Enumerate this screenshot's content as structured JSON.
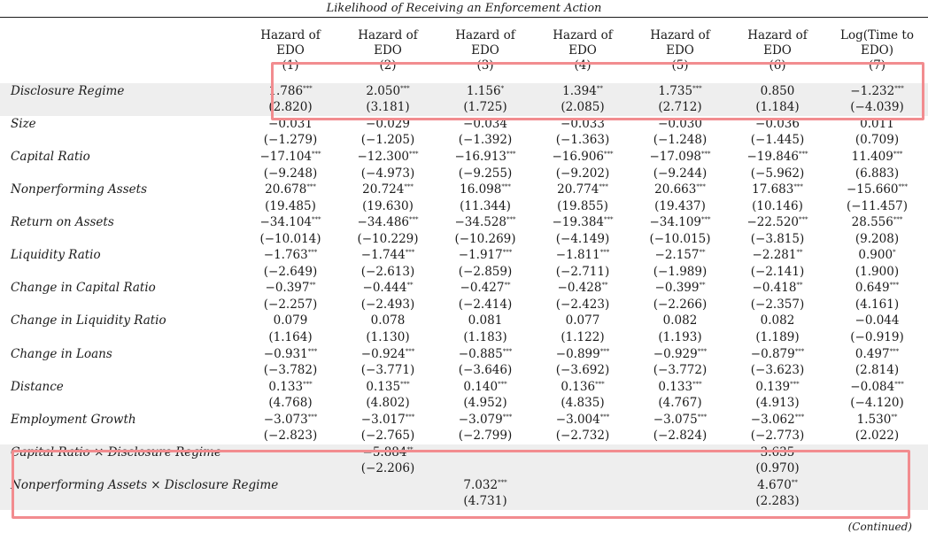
{
  "caption": "Likelihood of Receiving an Enforcement Action",
  "columns": [
    {
      "l1": "Hazard of",
      "l2": "EDO",
      "l3": "(1)"
    },
    {
      "l1": "Hazard of",
      "l2": "EDO",
      "l3": "(2)"
    },
    {
      "l1": "Hazard of",
      "l2": "EDO",
      "l3": "(3)"
    },
    {
      "l1": "Hazard of",
      "l2": "EDO",
      "l3": "(4)"
    },
    {
      "l1": "Hazard of",
      "l2": "EDO",
      "l3": "(5)"
    },
    {
      "l1": "Hazard of",
      "l2": "EDO",
      "l3": "(6)"
    },
    {
      "l1": "Log(Time to",
      "l2": "EDO)",
      "l3": "(7)"
    }
  ],
  "rows": [
    {
      "label": "Disclosure Regime",
      "shade": true,
      "coef": [
        [
          "1.786",
          "***"
        ],
        [
          "2.050",
          "***"
        ],
        [
          "1.156",
          "*"
        ],
        [
          "1.394",
          "**"
        ],
        [
          "1.735",
          "***"
        ],
        [
          "0.850",
          ""
        ],
        [
          "−1.232",
          "***"
        ]
      ],
      "t": [
        "(2.820)",
        "(3.181)",
        "(1.725)",
        "(2.085)",
        "(2.712)",
        "(1.184)",
        "(−4.039)"
      ]
    },
    {
      "label": "Size",
      "shade": false,
      "coef": [
        [
          "−0.031",
          ""
        ],
        [
          "−0.029",
          ""
        ],
        [
          "−0.034",
          ""
        ],
        [
          "−0.033",
          ""
        ],
        [
          "−0.030",
          ""
        ],
        [
          "−0.036",
          ""
        ],
        [
          "0.011",
          ""
        ]
      ],
      "t": [
        "(−1.279)",
        "(−1.205)",
        "(−1.392)",
        "(−1.363)",
        "(−1.248)",
        "(−1.445)",
        "(0.709)"
      ]
    },
    {
      "label": "Capital Ratio",
      "shade": false,
      "coef": [
        [
          "−17.104",
          "***"
        ],
        [
          "−12.300",
          "***"
        ],
        [
          "−16.913",
          "***"
        ],
        [
          "−16.906",
          "***"
        ],
        [
          "−17.098",
          "***"
        ],
        [
          "−19.846",
          "***"
        ],
        [
          "11.409",
          "***"
        ]
      ],
      "t": [
        "(−9.248)",
        "(−4.973)",
        "(−9.255)",
        "(−9.202)",
        "(−9.244)",
        "(−5.962)",
        "(6.883)"
      ]
    },
    {
      "label": "Nonperforming Assets",
      "shade": false,
      "coef": [
        [
          "20.678",
          "***"
        ],
        [
          "20.724",
          "***"
        ],
        [
          "16.098",
          "***"
        ],
        [
          "20.774",
          "***"
        ],
        [
          "20.663",
          "***"
        ],
        [
          "17.683",
          "***"
        ],
        [
          "−15.660",
          "***"
        ]
      ],
      "t": [
        "(19.485)",
        "(19.630)",
        "(11.344)",
        "(19.855)",
        "(19.437)",
        "(10.146)",
        "(−11.457)"
      ]
    },
    {
      "label": "Return on Assets",
      "shade": false,
      "coef": [
        [
          "−34.104",
          "***"
        ],
        [
          "−34.486",
          "***"
        ],
        [
          "−34.528",
          "***"
        ],
        [
          "−19.384",
          "***"
        ],
        [
          "−34.109",
          "***"
        ],
        [
          "−22.520",
          "***"
        ],
        [
          "28.556",
          "***"
        ]
      ],
      "t": [
        "(−10.014)",
        "(−10.229)",
        "(−10.269)",
        "(−4.149)",
        "(−10.015)",
        "(−3.815)",
        "(9.208)"
      ]
    },
    {
      "label": "Liquidity Ratio",
      "shade": false,
      "coef": [
        [
          "−1.763",
          "***"
        ],
        [
          "−1.744",
          "***"
        ],
        [
          "−1.917",
          "***"
        ],
        [
          "−1.811",
          "***"
        ],
        [
          "−2.157",
          "**"
        ],
        [
          "−2.281",
          "**"
        ],
        [
          "0.900",
          "*"
        ]
      ],
      "t": [
        "(−2.649)",
        "(−2.613)",
        "(−2.859)",
        "(−2.711)",
        "(−1.989)",
        "(−2.141)",
        "(1.900)"
      ]
    },
    {
      "label": "Change in Capital Ratio",
      "shade": false,
      "coef": [
        [
          "−0.397",
          "**"
        ],
        [
          "−0.444",
          "**"
        ],
        [
          "−0.427",
          "**"
        ],
        [
          "−0.428",
          "**"
        ],
        [
          "−0.399",
          "**"
        ],
        [
          "−0.418",
          "**"
        ],
        [
          "0.649",
          "***"
        ]
      ],
      "t": [
        "(−2.257)",
        "(−2.493)",
        "(−2.414)",
        "(−2.423)",
        "(−2.266)",
        "(−2.357)",
        "(4.161)"
      ]
    },
    {
      "label": "Change in Liquidity Ratio",
      "shade": false,
      "coef": [
        [
          "0.079",
          ""
        ],
        [
          "0.078",
          ""
        ],
        [
          "0.081",
          ""
        ],
        [
          "0.077",
          ""
        ],
        [
          "0.082",
          ""
        ],
        [
          "0.082",
          ""
        ],
        [
          "−0.044",
          ""
        ]
      ],
      "t": [
        "(1.164)",
        "(1.130)",
        "(1.183)",
        "(1.122)",
        "(1.193)",
        "(1.189)",
        "(−0.919)"
      ]
    },
    {
      "label": "Change in Loans",
      "shade": false,
      "coef": [
        [
          "−0.931",
          "***"
        ],
        [
          "−0.924",
          "***"
        ],
        [
          "−0.885",
          "***"
        ],
        [
          "−0.899",
          "***"
        ],
        [
          "−0.929",
          "***"
        ],
        [
          "−0.879",
          "***"
        ],
        [
          "0.497",
          "***"
        ]
      ],
      "t": [
        "(−3.782)",
        "(−3.771)",
        "(−3.646)",
        "(−3.692)",
        "(−3.772)",
        "(−3.623)",
        "(2.814)"
      ]
    },
    {
      "label": "Distance",
      "shade": false,
      "coef": [
        [
          "0.133",
          "***"
        ],
        [
          "0.135",
          "***"
        ],
        [
          "0.140",
          "***"
        ],
        [
          "0.136",
          "***"
        ],
        [
          "0.133",
          "***"
        ],
        [
          "0.139",
          "***"
        ],
        [
          "−0.084",
          "***"
        ]
      ],
      "t": [
        "(4.768)",
        "(4.802)",
        "(4.952)",
        "(4.835)",
        "(4.767)",
        "(4.913)",
        "(−4.120)"
      ]
    },
    {
      "label": "Employment Growth",
      "shade": false,
      "coef": [
        [
          "−3.073",
          "***"
        ],
        [
          "−3.017",
          "***"
        ],
        [
          "−3.079",
          "***"
        ],
        [
          "−3.004",
          "***"
        ],
        [
          "−3.075",
          "***"
        ],
        [
          "−3.062",
          "***"
        ],
        [
          "1.530",
          "**"
        ]
      ],
      "t": [
        "(−2.823)",
        "(−2.765)",
        "(−2.799)",
        "(−2.732)",
        "(−2.824)",
        "(−2.773)",
        "(2.022)"
      ]
    },
    {
      "label": "Capital Ratio × Disclosure Regime",
      "shade": true,
      "coef": [
        [
          "",
          ""
        ],
        [
          "−5.884",
          "**"
        ],
        [
          "",
          ""
        ],
        [
          "",
          ""
        ],
        [
          "",
          ""
        ],
        [
          "3.635",
          ""
        ],
        [
          "",
          ""
        ]
      ],
      "t": [
        "",
        "(−2.206)",
        "",
        "",
        "",
        "(0.970)",
        ""
      ]
    },
    {
      "label": "Nonperforming Assets × Disclosure Regime",
      "shade": true,
      "coef": [
        [
          "",
          ""
        ],
        [
          "",
          ""
        ],
        [
          "7.032",
          "***"
        ],
        [
          "",
          ""
        ],
        [
          "",
          ""
        ],
        [
          "4.670",
          "**"
        ],
        [
          "",
          ""
        ]
      ],
      "t": [
        "",
        "",
        "(4.731)",
        "",
        "",
        "(2.283)",
        ""
      ]
    }
  ],
  "continued": "(Continued)",
  "highlight_color": "#f28c8f"
}
